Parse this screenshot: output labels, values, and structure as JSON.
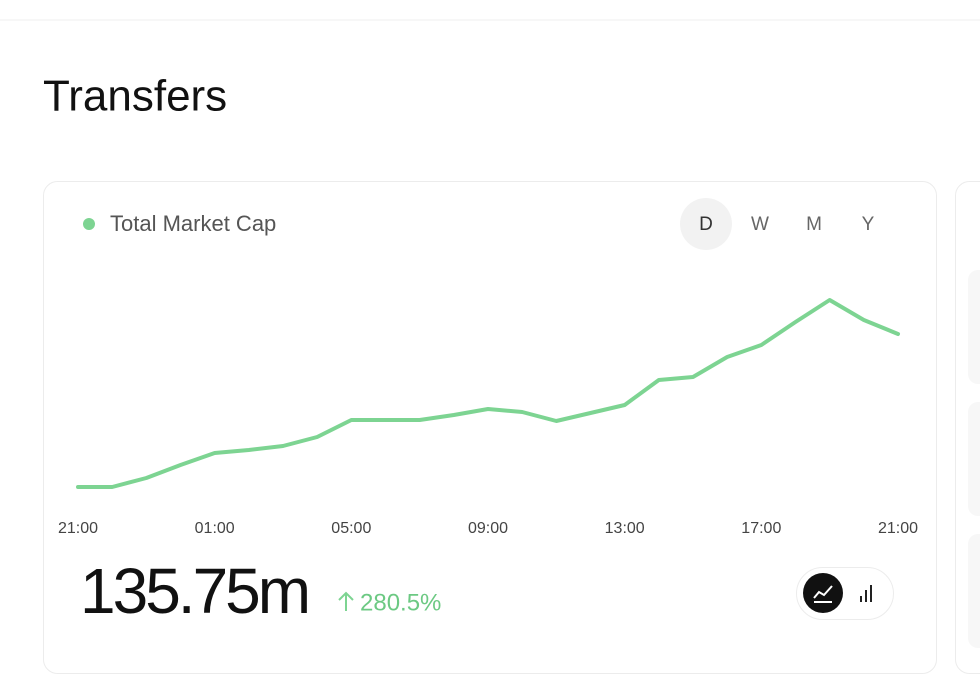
{
  "header": {
    "title": "Transfers"
  },
  "range_buttons": [
    "D",
    "W",
    "M",
    "Y"
  ],
  "chart_data": {
    "type": "line",
    "categories": [
      "21:00",
      null,
      null,
      null,
      "01:00",
      null,
      null,
      null,
      "05:00",
      null,
      null,
      null,
      "09:00",
      null,
      null,
      null,
      "13:00",
      null,
      null,
      null,
      "17:00",
      null,
      null,
      null,
      "21:00"
    ],
    "series": [
      {
        "name": "Total Market Cap",
        "color": "#7dd492",
        "values": [
          13,
          13,
          22,
          35,
          47,
          50,
          54,
          63,
          80,
          80,
          80,
          85,
          91,
          88,
          79,
          87,
          95,
          120,
          123,
          143,
          155,
          178,
          200,
          180,
          166
        ]
      }
    ]
  },
  "summary": {
    "value": "135.75m",
    "change": "280.5%"
  }
}
